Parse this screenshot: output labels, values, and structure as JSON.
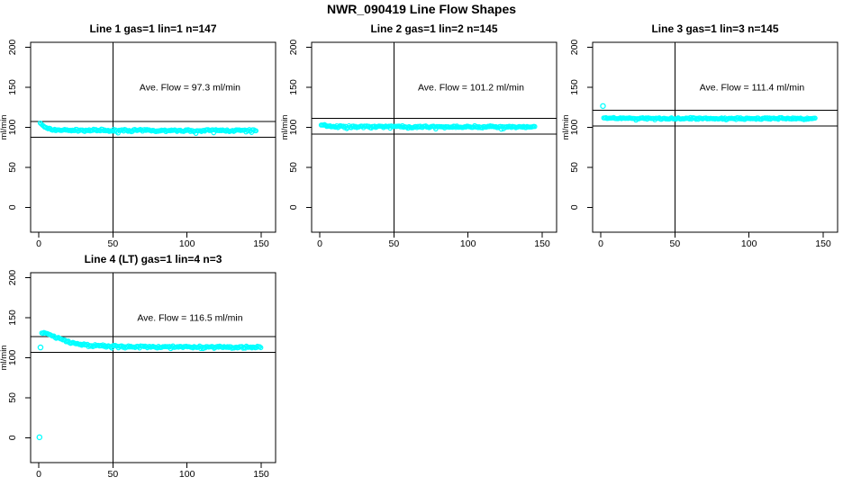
{
  "figure": {
    "title": "NWR_090419  Line Flow Shapes",
    "background": "#FFFFFF",
    "point_color": "#00FFFF",
    "axis_color": "#000000"
  },
  "axes": {
    "x_ticks": [
      0,
      50,
      100,
      150
    ],
    "y_ticks": [
      0,
      50,
      100,
      150,
      200
    ],
    "y_label": "ml/min",
    "x_label": "",
    "x_range": [
      -5.5,
      160
    ],
    "y_range": [
      -31,
      206
    ],
    "ref_vline_x": 50,
    "grid": false,
    "legend": "none"
  },
  "chart_data": [
    {
      "type": "scatter",
      "title": "Line 1 gas=1 lin=1 n=147",
      "line": 1,
      "gas": 1,
      "lin": 1,
      "n": 147,
      "ave_flow": 97.3,
      "annotation": "Ave. Flow =  97.3  ml/min",
      "ref_line_upper": 107.3,
      "ref_line_lower": 87.3,
      "jitter": 1.6,
      "series_anchors": [
        [
          1,
          105.5
        ],
        [
          2,
          103.5
        ],
        [
          3,
          101.5
        ],
        [
          4,
          100.0
        ],
        [
          5,
          99.0
        ],
        [
          7,
          97.8
        ],
        [
          9,
          97.2
        ],
        [
          12,
          96.8
        ],
        [
          16,
          96.5
        ],
        [
          22,
          96.3
        ],
        [
          30,
          96.2
        ],
        [
          45,
          96.1
        ],
        [
          70,
          96.0
        ],
        [
          100,
          95.9
        ],
        [
          125,
          95.9
        ],
        [
          147,
          95.8
        ]
      ],
      "outliers": []
    },
    {
      "type": "scatter",
      "title": "Line 2 gas=1 lin=2 n=145",
      "line": 2,
      "gas": 1,
      "lin": 2,
      "n": 145,
      "ave_flow": 101.2,
      "annotation": "Ave. Flow =  101.2  ml/min",
      "ref_line_upper": 111.2,
      "ref_line_lower": 91.2,
      "jitter": 1.5,
      "series_anchors": [
        [
          1,
          104.0
        ],
        [
          2,
          102.8
        ],
        [
          3,
          102.0
        ],
        [
          5,
          101.4
        ],
        [
          8,
          101.0
        ],
        [
          12,
          100.8
        ],
        [
          18,
          100.7
        ],
        [
          30,
          100.6
        ],
        [
          50,
          100.6
        ],
        [
          80,
          100.5
        ],
        [
          110,
          100.5
        ],
        [
          145,
          100.4
        ]
      ],
      "outliers": []
    },
    {
      "type": "scatter",
      "title": "Line 3 gas=1 lin=3 n=145",
      "line": 3,
      "gas": 1,
      "lin": 3,
      "n": 145,
      "ave_flow": 111.4,
      "annotation": "Ave. Flow =  111.4  ml/min",
      "ref_line_upper": 121.4,
      "ref_line_lower": 101.4,
      "jitter": 1.3,
      "series_anchors": [
        [
          2,
          112.5
        ],
        [
          3,
          111.8
        ],
        [
          5,
          111.4
        ],
        [
          8,
          111.2
        ],
        [
          14,
          111.1
        ],
        [
          25,
          111.0
        ],
        [
          50,
          110.9
        ],
        [
          80,
          110.9
        ],
        [
          110,
          110.8
        ],
        [
          145,
          110.8
        ]
      ],
      "outliers": [
        [
          1.5,
          126.5
        ]
      ]
    },
    {
      "type": "scatter",
      "title": "Line 4 (LT) gas=1 lin=4 n=3",
      "line": 4,
      "lt": "(LT)",
      "gas": 1,
      "lin": 4,
      "n": 3,
      "ave_flow": 116.5,
      "annotation": "Ave. Flow =  116.5  ml/min",
      "ref_line_upper": 126.5,
      "ref_line_lower": 106.5,
      "jitter": 1.8,
      "series_anchors": [
        [
          2,
          131.5
        ],
        [
          4,
          130.5
        ],
        [
          6,
          129.5
        ],
        [
          8,
          128.0
        ],
        [
          10,
          126.5
        ],
        [
          13,
          124.5
        ],
        [
          16,
          122.5
        ],
        [
          20,
          120.0
        ],
        [
          24,
          118.0
        ],
        [
          28,
          116.5
        ],
        [
          33,
          115.5
        ],
        [
          40,
          114.8
        ],
        [
          50,
          114.2
        ],
        [
          60,
          113.9
        ],
        [
          75,
          113.6
        ],
        [
          90,
          113.5
        ],
        [
          105,
          113.3
        ],
        [
          120,
          113.2
        ],
        [
          135,
          113.0
        ],
        [
          150,
          112.7
        ]
      ],
      "outliers": [
        [
          1.2,
          112.8
        ],
        [
          0.5,
          0.5
        ]
      ]
    }
  ]
}
